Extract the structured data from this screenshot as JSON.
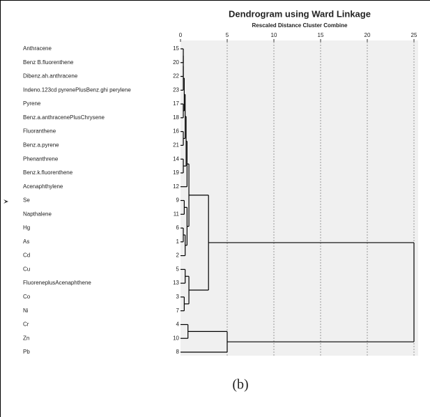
{
  "chart_data": {
    "type": "dendrogram",
    "title": "Dendrogram using Ward Linkage",
    "subtitle": "Rescaled Distance Cluster Combine",
    "xlim": [
      0,
      25
    ],
    "xticks": [
      0,
      5,
      10,
      15,
      20,
      25
    ],
    "grid": true,
    "labels": [
      "Anthracene",
      "Benz B.fluorenthene",
      "Dibenz.ah.anthracene",
      "Indeno.123cd pyrenePlusBenz.ghi perylene",
      "Pyrene",
      "Benz.a.anthracenePlusChrysene",
      "Fluoranthene",
      "Benz.a.pyrene",
      "Phenanthrene",
      "Benz.k.fluorenthene",
      "Acenaphthylene",
      "Se",
      "Napthalene",
      "Hg",
      "As",
      "Cd",
      "Cu",
      "FluoreneplusAcenaphthene",
      "Co",
      "Ni",
      "Cr",
      "Zn",
      "Pb"
    ],
    "cases": [
      15,
      20,
      22,
      23,
      17,
      18,
      16,
      21,
      14,
      19,
      12,
      9,
      11,
      6,
      1,
      2,
      5,
      13,
      3,
      7,
      4,
      10,
      8
    ],
    "merges": [
      {
        "left": 0,
        "right": 1,
        "height": 0.3
      },
      {
        "left": 23,
        "right": 2,
        "height": 0.3
      },
      {
        "left": 24,
        "right": 3,
        "height": 0.3
      },
      {
        "left": 4,
        "right": 5,
        "height": 0.3
      },
      {
        "left": 25,
        "right": 26,
        "height": 0.4
      },
      {
        "left": 6,
        "right": 7,
        "height": 0.3
      },
      {
        "left": 27,
        "right": 28,
        "height": 0.5
      },
      {
        "left": 8,
        "right": 9,
        "height": 0.3
      },
      {
        "left": 29,
        "right": 30,
        "height": 0.6
      },
      {
        "left": 31,
        "right": 10,
        "height": 0.7
      },
      {
        "left": 11,
        "right": 12,
        "height": 0.4
      },
      {
        "left": 13,
        "right": 14,
        "height": 0.3
      },
      {
        "left": 34,
        "right": 15,
        "height": 0.5
      },
      {
        "left": 33,
        "right": 35,
        "height": 0.7
      },
      {
        "left": 32,
        "right": 36,
        "height": 0.9
      },
      {
        "left": 16,
        "right": 17,
        "height": 0.5
      },
      {
        "left": 18,
        "right": 19,
        "height": 0.4
      },
      {
        "left": 38,
        "right": 39,
        "height": 0.9
      },
      {
        "left": 37,
        "right": 40,
        "height": 3
      },
      {
        "left": 20,
        "right": 21,
        "height": 0.8
      },
      {
        "left": 42,
        "right": 22,
        "height": 5
      },
      {
        "left": 41,
        "right": 43,
        "height": 25
      }
    ],
    "caption": "(b)"
  }
}
